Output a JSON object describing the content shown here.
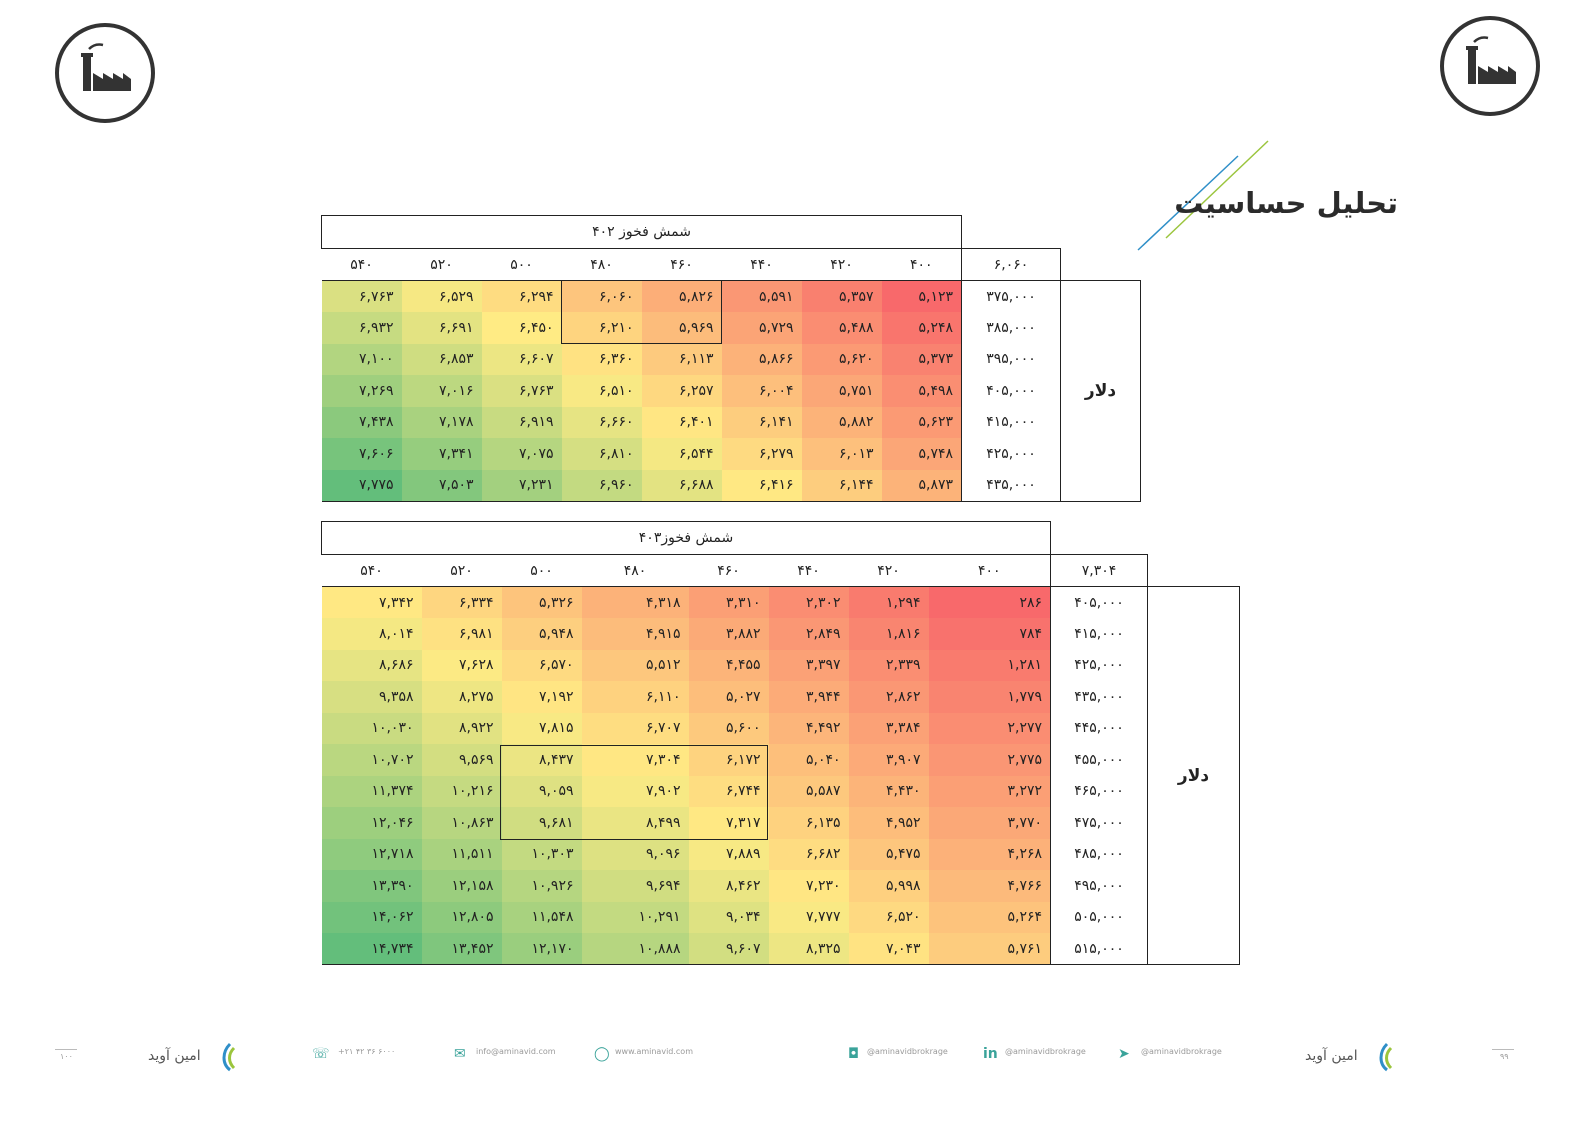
{
  "page": {
    "title": "تحلیل حساسیت",
    "colors": {
      "low": "#f8696b",
      "mid": "#ffeb84",
      "high": "#63be7b",
      "accent_blue": "#2f8fc8",
      "accent_green": "#9bc53d"
    }
  },
  "table1": {
    "header": "شمش فخوز ۴۰۲",
    "corner": "۶,۰۶۰",
    "side_label": "دلار",
    "col_headers": [
      "۴۰۰",
      "۴۲۰",
      "۴۴۰",
      "۴۶۰",
      "۴۸۰",
      "۵۰۰",
      "۵۲۰",
      "۵۴۰"
    ],
    "rows": [
      {
        "label": "۳۷۵,۰۰۰",
        "cells": [
          "۵,۱۲۳",
          "۵,۳۵۷",
          "۵,۵۹۱",
          "۵,۸۲۶",
          "۶,۰۶۰",
          "۶,۲۹۴",
          "۶,۵۲۹",
          "۶,۷۶۳"
        ],
        "raw": [
          5123,
          5357,
          5591,
          5826,
          6060,
          6294,
          6529,
          6763
        ]
      },
      {
        "label": "۳۸۵,۰۰۰",
        "cells": [
          "۵,۲۴۸",
          "۵,۴۸۸",
          "۵,۷۲۹",
          "۵,۹۶۹",
          "۶,۲۱۰",
          "۶,۴۵۰",
          "۶,۶۹۱",
          "۶,۹۳۲"
        ],
        "raw": [
          5248,
          5488,
          5729,
          5969,
          6210,
          6450,
          6691,
          6932
        ]
      },
      {
        "label": "۳۹۵,۰۰۰",
        "cells": [
          "۵,۳۷۳",
          "۵,۶۲۰",
          "۵,۸۶۶",
          "۶,۱۱۳",
          "۶,۳۶۰",
          "۶,۶۰۷",
          "۶,۸۵۳",
          "۷,۱۰۰"
        ],
        "raw": [
          5373,
          5620,
          5866,
          6113,
          6360,
          6607,
          6853,
          7100
        ]
      },
      {
        "label": "۴۰۵,۰۰۰",
        "cells": [
          "۵,۴۹۸",
          "۵,۷۵۱",
          "۶,۰۰۴",
          "۶,۲۵۷",
          "۶,۵۱۰",
          "۶,۷۶۳",
          "۷,۰۱۶",
          "۷,۲۶۹"
        ],
        "raw": [
          5498,
          5751,
          6004,
          6257,
          6510,
          6763,
          7016,
          7269
        ]
      },
      {
        "label": "۴۱۵,۰۰۰",
        "cells": [
          "۵,۶۲۳",
          "۵,۸۸۲",
          "۶,۱۴۱",
          "۶,۴۰۱",
          "۶,۶۶۰",
          "۶,۹۱۹",
          "۷,۱۷۸",
          "۷,۴۳۸"
        ],
        "raw": [
          5623,
          5882,
          6141,
          6401,
          6660,
          6919,
          7178,
          7438
        ]
      },
      {
        "label": "۴۲۵,۰۰۰",
        "cells": [
          "۵,۷۴۸",
          "۶,۰۱۳",
          "۶,۲۷۹",
          "۶,۵۴۴",
          "۶,۸۱۰",
          "۷,۰۷۵",
          "۷,۳۴۱",
          "۷,۶۰۶"
        ],
        "raw": [
          5748,
          6013,
          6279,
          6544,
          6810,
          7075,
          7341,
          7606
        ]
      },
      {
        "label": "۴۳۵,۰۰۰",
        "cells": [
          "۵,۸۷۳",
          "۶,۱۴۴",
          "۶,۴۱۶",
          "۶,۶۸۸",
          "۶,۹۶۰",
          "۷,۲۳۱",
          "۷,۵۰۳",
          "۷,۷۷۵"
        ],
        "raw": [
          5873,
          6144,
          6416,
          6688,
          6960,
          7231,
          7503,
          7775
        ]
      }
    ]
  },
  "table2": {
    "header": "شمش فخوز۴۰۳",
    "corner": "۷,۳۰۴",
    "side_label": "دلار",
    "col_headers": [
      "۴۰۰",
      "۴۲۰",
      "۴۴۰",
      "۴۶۰",
      "۴۸۰",
      "۵۰۰",
      "۵۲۰",
      "۵۴۰"
    ],
    "rows": [
      {
        "label": "۴۰۵,۰۰۰",
        "cells": [
          "۲۸۶",
          "۱,۲۹۴",
          "۲,۳۰۲",
          "۳,۳۱۰",
          "۴,۳۱۸",
          "۵,۳۲۶",
          "۶,۳۳۴",
          "۷,۳۴۲"
        ],
        "raw": [
          286,
          1294,
          2302,
          3310,
          4318,
          5326,
          6334,
          7342
        ]
      },
      {
        "label": "۴۱۵,۰۰۰",
        "cells": [
          "۷۸۴",
          "۱,۸۱۶",
          "۲,۸۴۹",
          "۳,۸۸۲",
          "۴,۹۱۵",
          "۵,۹۴۸",
          "۶,۹۸۱",
          "۸,۰۱۴"
        ],
        "raw": [
          784,
          1816,
          2849,
          3882,
          4915,
          5948,
          6981,
          8014
        ]
      },
      {
        "label": "۴۲۵,۰۰۰",
        "cells": [
          "۱,۲۸۱",
          "۲,۳۳۹",
          "۳,۳۹۷",
          "۴,۴۵۵",
          "۵,۵۱۲",
          "۶,۵۷۰",
          "۷,۶۲۸",
          "۸,۶۸۶"
        ],
        "raw": [
          1281,
          2339,
          3397,
          4455,
          5512,
          6570,
          7628,
          8686
        ]
      },
      {
        "label": "۴۳۵,۰۰۰",
        "cells": [
          "۱,۷۷۹",
          "۲,۸۶۲",
          "۳,۹۴۴",
          "۵,۰۲۷",
          "۶,۱۱۰",
          "۷,۱۹۲",
          "۸,۲۷۵",
          "۹,۳۵۸"
        ],
        "raw": [
          1779,
          2862,
          3944,
          5027,
          6110,
          7192,
          8275,
          9358
        ]
      },
      {
        "label": "۴۴۵,۰۰۰",
        "cells": [
          "۲,۲۷۷",
          "۳,۳۸۴",
          "۴,۴۹۲",
          "۵,۶۰۰",
          "۶,۷۰۷",
          "۷,۸۱۵",
          "۸,۹۲۲",
          "۱۰,۰۳۰"
        ],
        "raw": [
          2277,
          3384,
          4492,
          5600,
          6707,
          7815,
          8922,
          10030
        ]
      },
      {
        "label": "۴۵۵,۰۰۰",
        "cells": [
          "۲,۷۷۵",
          "۳,۹۰۷",
          "۵,۰۴۰",
          "۶,۱۷۲",
          "۷,۳۰۴",
          "۸,۴۳۷",
          "۹,۵۶۹",
          "۱۰,۷۰۲"
        ],
        "raw": [
          2775,
          3907,
          5040,
          6172,
          7304,
          8437,
          9569,
          10702
        ]
      },
      {
        "label": "۴۶۵,۰۰۰",
        "cells": [
          "۳,۲۷۲",
          "۴,۴۳۰",
          "۵,۵۸۷",
          "۶,۷۴۴",
          "۷,۹۰۲",
          "۹,۰۵۹",
          "۱۰,۲۱۶",
          "۱۱,۳۷۴"
        ],
        "raw": [
          3272,
          4430,
          5587,
          6744,
          7902,
          9059,
          10216,
          11374
        ]
      },
      {
        "label": "۴۷۵,۰۰۰",
        "cells": [
          "۳,۷۷۰",
          "۴,۹۵۲",
          "۶,۱۳۵",
          "۷,۳۱۷",
          "۸,۴۹۹",
          "۹,۶۸۱",
          "۱۰,۸۶۳",
          "۱۲,۰۴۶"
        ],
        "raw": [
          3770,
          4952,
          6135,
          7317,
          8499,
          9681,
          10863,
          12046
        ]
      },
      {
        "label": "۴۸۵,۰۰۰",
        "cells": [
          "۴,۲۶۸",
          "۵,۴۷۵",
          "۶,۶۸۲",
          "۷,۸۸۹",
          "۹,۰۹۶",
          "۱۰,۳۰۳",
          "۱۱,۵۱۱",
          "۱۲,۷۱۸"
        ],
        "raw": [
          4268,
          5475,
          6682,
          7889,
          9096,
          10303,
          11511,
          12718
        ]
      },
      {
        "label": "۴۹۵,۰۰۰",
        "cells": [
          "۴,۷۶۶",
          "۵,۹۹۸",
          "۷,۲۳۰",
          "۸,۴۶۲",
          "۹,۶۹۴",
          "۱۰,۹۲۶",
          "۱۲,۱۵۸",
          "۱۳,۳۹۰"
        ],
        "raw": [
          4766,
          5998,
          7230,
          8462,
          9694,
          10926,
          12158,
          13390
        ]
      },
      {
        "label": "۵۰۵,۰۰۰",
        "cells": [
          "۵,۲۶۴",
          "۶,۵۲۰",
          "۷,۷۷۷",
          "۹,۰۳۴",
          "۱۰,۲۹۱",
          "۱۱,۵۴۸",
          "۱۲,۸۰۵",
          "۱۴,۰۶۲"
        ],
        "raw": [
          5264,
          6520,
          7777,
          9034,
          10291,
          11548,
          12805,
          14062
        ]
      },
      {
        "label": "۵۱۵,۰۰۰",
        "cells": [
          "۵,۷۶۱",
          "۷,۰۴۳",
          "۸,۳۲۵",
          "۹,۶۰۷",
          "۱۰,۸۸۸",
          "۱۲,۱۷۰",
          "۱۳,۴۵۲",
          "۱۴,۷۳۴"
        ],
        "raw": [
          5761,
          7043,
          8325,
          9607,
          10888,
          12170,
          13452,
          14734
        ]
      }
    ]
  },
  "footer": {
    "brand": "امین آوید",
    "page_left": "۱۰۰",
    "page_right": "۹۹",
    "phone": "+۲۱ ۴۲ ۳۶ ۶۰۰۰",
    "email": "info@aminavid.com",
    "website": "www.aminavid.com",
    "instagram": "@aminavidbrokrage",
    "linkedin": "@aminavidbrokrage",
    "telegram": "@aminavidbrokrage"
  }
}
